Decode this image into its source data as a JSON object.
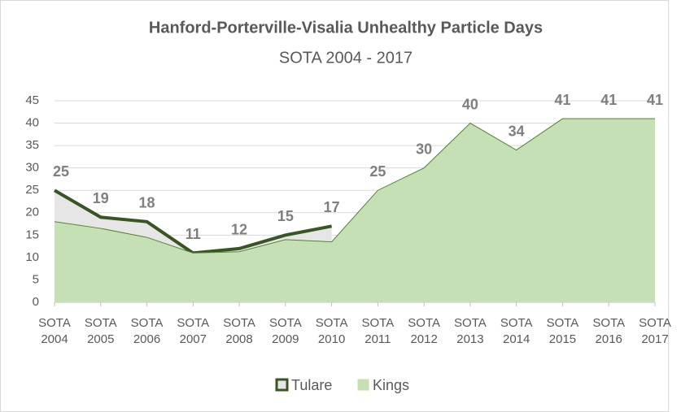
{
  "chart_data": {
    "type": "area",
    "title": "Hanford-Porterville-Visalia Unhealthy Particle Days",
    "subtitle": "SOTA 2004 - 2017",
    "categories": [
      "SOTA 2004",
      "SOTA 2005",
      "SOTA 2006",
      "SOTA 2007",
      "SOTA 2008",
      "SOTA 2009",
      "SOTA 2010",
      "SOTA 2011",
      "SOTA 2012",
      "SOTA 2013",
      "SOTA 2014",
      "SOTA 2015",
      "SOTA 2016",
      "SOTA 2017"
    ],
    "series": [
      {
        "name": "Tulare",
        "color": "#e7e6e6",
        "edge": "#375623",
        "values": [
          25,
          19,
          18,
          11,
          12,
          15,
          17,
          null,
          null,
          null,
          null,
          null,
          null,
          null
        ]
      },
      {
        "name": "Kings",
        "color": "#c5e0b4",
        "edge": "#548235",
        "values": [
          18,
          16.5,
          14.5,
          11,
          11.3,
          14,
          13.5,
          25,
          30,
          40,
          34,
          41,
          41,
          41
        ]
      }
    ],
    "ylim": [
      0,
      45
    ],
    "yticks": [
      0,
      5,
      10,
      15,
      20,
      25,
      30,
      35,
      40,
      45
    ],
    "grid": true,
    "legend": "bottom"
  }
}
